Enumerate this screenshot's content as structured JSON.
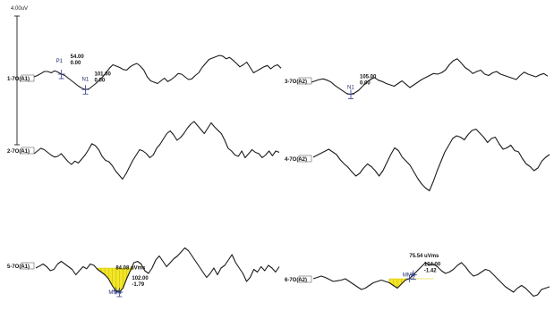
{
  "chart_data": {
    "type": "line",
    "scale_bar_label": "4.00uV",
    "panels": [
      {
        "label": "1-7O(A1)",
        "y": [
          0,
          2,
          5,
          8,
          8,
          6,
          9,
          7,
          4,
          2,
          -2,
          -6,
          -10,
          -14,
          -17,
          -19,
          -18,
          -14,
          -10,
          -5,
          0,
          6,
          13,
          18,
          16,
          14,
          11,
          10,
          15,
          18,
          20,
          16,
          10,
          0,
          -6,
          -8,
          -10,
          -6,
          -2,
          -7,
          -4,
          0,
          5,
          4,
          0,
          -4,
          -3,
          2,
          6,
          14,
          20,
          26,
          28,
          30,
          32,
          31,
          27,
          29,
          25,
          20,
          15,
          18,
          22,
          14,
          6,
          9,
          12,
          15,
          17,
          12,
          16,
          18,
          13
        ],
        "markers": [
          {
            "name": "P1",
            "latency": "54.00",
            "amplitude": "0.00"
          },
          {
            "name": "N1",
            "latency": "101.00",
            "amplitude": "0.00"
          }
        ]
      },
      {
        "label": "3-7O(A2)",
        "y": [
          0,
          2,
          4,
          5,
          3,
          0,
          -5,
          -9,
          -13,
          -17,
          -18,
          -16,
          -12,
          -6,
          0,
          4,
          7,
          3,
          1,
          -2,
          -4,
          -6,
          -2,
          2,
          -3,
          -8,
          -4,
          0,
          4,
          7,
          10,
          13,
          12,
          14,
          18,
          26,
          32,
          35,
          29,
          22,
          18,
          13,
          16,
          18,
          12,
          10,
          14,
          16,
          12,
          10,
          8,
          6,
          4,
          10,
          15,
          12,
          10,
          8,
          11,
          13,
          9
        ],
        "markers": [
          {
            "name": "N1",
            "latency": "105.00",
            "amplitude": "0.00"
          }
        ]
      },
      {
        "label": "2-7O(A1)",
        "y": [
          0,
          4,
          8,
          6,
          2,
          -2,
          -5,
          -4,
          0,
          -6,
          -12,
          -16,
          -11,
          -14,
          -8,
          -2,
          6,
          15,
          12,
          6,
          -4,
          -10,
          -12,
          -18,
          -26,
          -32,
          -38,
          -30,
          -20,
          -10,
          -2,
          6,
          4,
          0,
          -6,
          -2,
          8,
          14,
          22,
          30,
          34,
          28,
          20,
          24,
          30,
          38,
          44,
          48,
          42,
          36,
          30,
          38,
          46,
          40,
          35,
          30,
          20,
          8,
          4,
          -2,
          -4,
          4,
          -6,
          0,
          6,
          2,
          0,
          -6,
          -2,
          4,
          -3,
          4,
          2
        ],
        "markers": []
      },
      {
        "label": "4-7O(A2)",
        "y": [
          0,
          3,
          6,
          9,
          12,
          8,
          4,
          -4,
          -10,
          -15,
          -22,
          -28,
          -24,
          -16,
          -10,
          -14,
          -20,
          -28,
          -20,
          -8,
          4,
          14,
          10,
          0,
          -6,
          -12,
          -22,
          -32,
          -40,
          -46,
          -50,
          -36,
          -20,
          -6,
          8,
          18,
          28,
          32,
          30,
          26,
          34,
          40,
          42,
          36,
          30,
          22,
          28,
          30,
          20,
          12,
          14,
          18,
          10,
          8,
          -2,
          -10,
          -14,
          -20,
          -16,
          -6,
          0,
          4
        ],
        "markers": []
      },
      {
        "label": "5-7O(A1)",
        "y": [
          0,
          3,
          6,
          2,
          -4,
          -2,
          6,
          10,
          6,
          2,
          -2,
          -10,
          -4,
          2,
          -1,
          6,
          4,
          -2,
          -6,
          -10,
          -16,
          -26,
          -34,
          -36,
          -30,
          -16,
          -4,
          8,
          10,
          6,
          -4,
          -8,
          0,
          12,
          18,
          10,
          2,
          8,
          14,
          18,
          24,
          30,
          26,
          18,
          10,
          2,
          -6,
          -14,
          -8,
          0,
          -10,
          0,
          4,
          12,
          20,
          8,
          0,
          -8,
          -20,
          -14,
          -2,
          -6,
          2,
          -4,
          4,
          0,
          -6,
          2
        ],
        "markers": [
          {
            "name": "",
            "latency": "84.08 uVms",
            "amplitude": ""
          },
          {
            "name": "MMN",
            "latency": "102.00",
            "amplitude": "-1.79"
          }
        ]
      },
      {
        "label": "6-7O(A2)",
        "y": [
          0,
          2,
          4,
          2,
          -1,
          -4,
          -3,
          -2,
          0,
          -4,
          -8,
          -12,
          -16,
          -14,
          -10,
          -6,
          -4,
          -2,
          -4,
          -6,
          -10,
          -14,
          -8,
          -2,
          0,
          6,
          12,
          18,
          24,
          20,
          22,
          18,
          12,
          8,
          10,
          14,
          20,
          24,
          18,
          10,
          4,
          6,
          10,
          14,
          12,
          6,
          0,
          -6,
          -12,
          -16,
          -20,
          -14,
          -10,
          -14,
          -20,
          -26,
          -24,
          -16,
          -14,
          -12
        ],
        "markers": [
          {
            "name": "",
            "latency": "75.54 uVms",
            "amplitude": ""
          },
          {
            "name": "MMN",
            "latency": "104.00",
            "amplitude": "-1.42"
          }
        ]
      }
    ]
  }
}
